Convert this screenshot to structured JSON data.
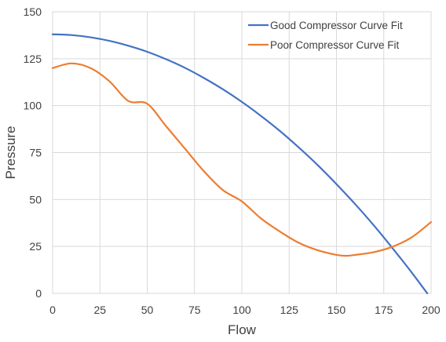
{
  "chart_data": {
    "type": "line",
    "title": "",
    "xlabel": "Flow",
    "ylabel": "Pressure",
    "xlim": [
      0,
      200
    ],
    "ylim": [
      0,
      150
    ],
    "xticks": [
      0,
      25,
      50,
      75,
      100,
      125,
      150,
      175,
      200
    ],
    "yticks": [
      0,
      25,
      50,
      75,
      100,
      125,
      150
    ],
    "grid": true,
    "legend_position": "top-right",
    "series": [
      {
        "name": "Good Compressor Curve Fit",
        "color": "#4472C4",
        "x": [
          0,
          10,
          20,
          30,
          40,
          50,
          60,
          70,
          80,
          90,
          100,
          110,
          120,
          130,
          140,
          150,
          160,
          170,
          180,
          190,
          198
        ],
        "y": [
          138,
          137.6,
          136.4,
          134.5,
          131.9,
          128.7,
          124.7,
          120.1,
          114.7,
          108.7,
          102,
          94.6,
          86.6,
          77.8,
          68.4,
          58.2,
          47.4,
          35.9,
          23.6,
          10.8,
          0
        ]
      },
      {
        "name": "Poor Compressor Curve Fit",
        "color": "#ED7D31",
        "x": [
          0,
          10,
          20,
          30,
          40,
          50,
          60,
          70,
          80,
          90,
          100,
          110,
          120,
          130,
          140,
          150,
          155,
          160,
          170,
          180,
          190,
          200
        ],
        "y": [
          120,
          122.5,
          120,
          113,
          102.5,
          101,
          89,
          77,
          65,
          55,
          49,
          40,
          33,
          27,
          23,
          20.5,
          20,
          20.5,
          22,
          25,
          30,
          38
        ]
      }
    ]
  }
}
